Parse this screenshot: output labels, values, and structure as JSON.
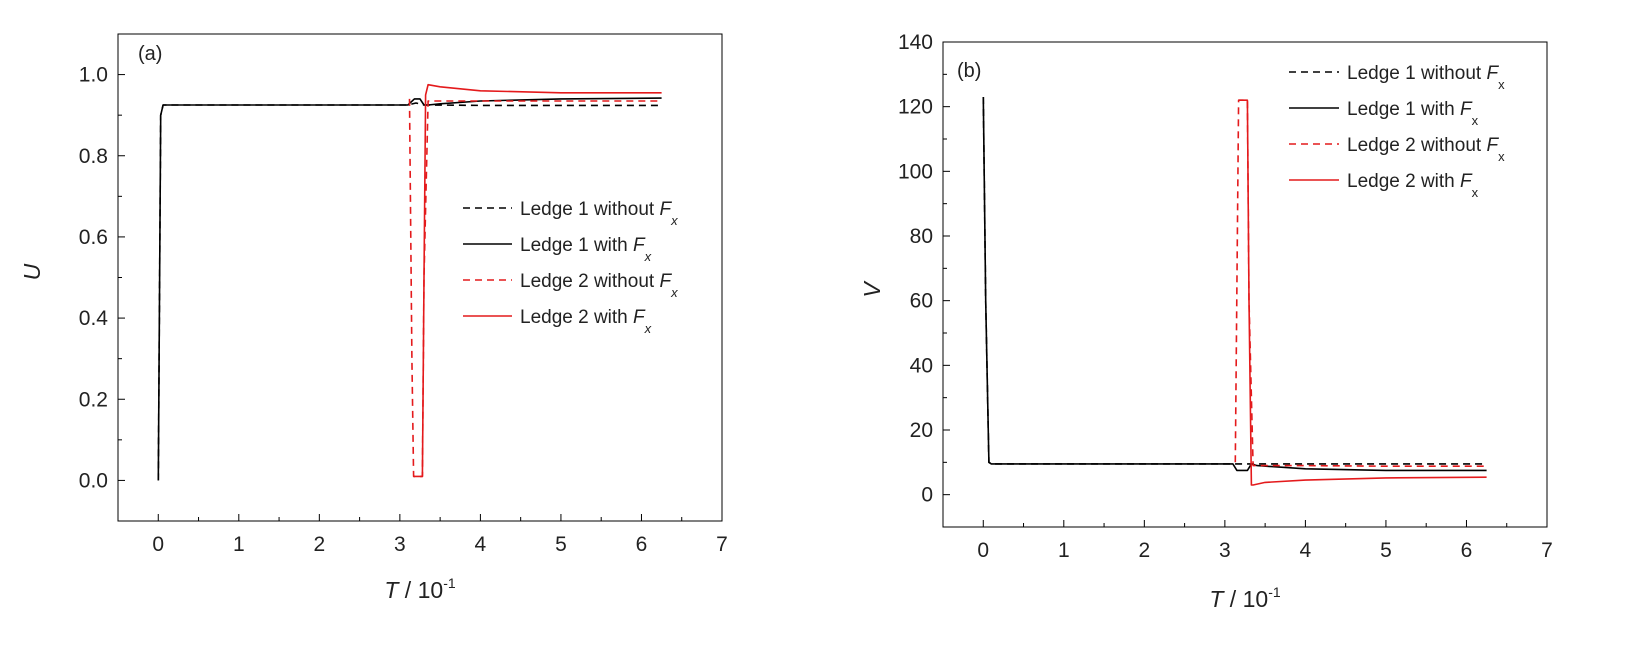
{
  "chart_data": [
    {
      "panel_label": "(a)",
      "type": "line",
      "xlabel": {
        "var": "T",
        "sep": " / ",
        "unit": "10",
        "exp": "-1"
      },
      "ylabel": "U",
      "xlim": [
        -0.5,
        7
      ],
      "ylim": [
        -0.1,
        1.1
      ],
      "xticks": [
        0,
        1,
        2,
        3,
        4,
        5,
        6,
        7
      ],
      "xtick_labels": [
        "0",
        "1",
        "2",
        "3",
        "4",
        "5",
        "6",
        "7"
      ],
      "yticks": [
        0.0,
        0.2,
        0.4,
        0.6,
        0.8,
        1.0
      ],
      "ytick_labels": [
        "0.0",
        "0.2",
        "0.4",
        "0.6",
        "0.8",
        "1.0"
      ],
      "legend_position": "center-right",
      "legend_subscript_style": "italic",
      "series": [
        {
          "legend": {
            "prefix": "Ledge 1 without ",
            "sym": "F",
            "sub": "x"
          },
          "color": "#000000",
          "dash": "dashed",
          "x": [
            0,
            0.03,
            0.06,
            3.1,
            3.2,
            3.3,
            3.4,
            4.0,
            5.0,
            6.25
          ],
          "y": [
            0.0,
            0.9,
            0.925,
            0.925,
            0.93,
            0.925,
            0.925,
            0.924,
            0.924,
            0.924
          ]
        },
        {
          "legend": {
            "prefix": "Ledge 1 with ",
            "sym": "F",
            "sub": "x"
          },
          "color": "#000000",
          "dash": "solid",
          "x": [
            0,
            0.03,
            0.06,
            3.1,
            3.18,
            3.25,
            3.3,
            3.35,
            3.5,
            4.0,
            5.0,
            6.25
          ],
          "y": [
            0.0,
            0.9,
            0.925,
            0.925,
            0.94,
            0.94,
            0.925,
            0.925,
            0.928,
            0.935,
            0.94,
            0.942
          ]
        },
        {
          "legend": {
            "prefix": "Ledge 2 without ",
            "sym": "F",
            "sub": "x"
          },
          "color": "#e41a1c",
          "dash": "dashed",
          "x": [
            3.12,
            3.15,
            3.17,
            3.22,
            3.28,
            3.3,
            3.35,
            3.5,
            4.0,
            5.0,
            6.25
          ],
          "y": [
            0.94,
            0.3,
            0.01,
            0.01,
            0.01,
            0.5,
            0.935,
            0.935,
            0.935,
            0.935,
            0.935
          ]
        },
        {
          "legend": {
            "prefix": "Ledge 2 with ",
            "sym": "F",
            "sub": "x"
          },
          "color": "#e41a1c",
          "dash": "solid",
          "x": [
            3.17,
            3.22,
            3.28,
            3.3,
            3.32,
            3.35,
            3.5,
            4.0,
            5.0,
            6.25
          ],
          "y": [
            0.01,
            0.01,
            0.01,
            0.5,
            0.95,
            0.975,
            0.97,
            0.96,
            0.955,
            0.955
          ]
        }
      ]
    },
    {
      "panel_label": "(b)",
      "type": "line",
      "xlabel": {
        "var": "T",
        "sep": " / ",
        "unit": "10",
        "exp": "-1"
      },
      "ylabel": "V",
      "xlim": [
        -0.5,
        7
      ],
      "ylim": [
        -10,
        140
      ],
      "xticks": [
        0,
        1,
        2,
        3,
        4,
        5,
        6,
        7
      ],
      "xtick_labels": [
        "0",
        "1",
        "2",
        "3",
        "4",
        "5",
        "6",
        "7"
      ],
      "yticks": [
        0,
        20,
        40,
        60,
        80,
        100,
        120,
        140
      ],
      "ytick_labels": [
        "0",
        "20",
        "40",
        "60",
        "80",
        "100",
        "120",
        "140"
      ],
      "legend_position": "top-right",
      "legend_subscript_style": "upright",
      "series": [
        {
          "legend": {
            "prefix": "Ledge 1 without ",
            "sym": "F",
            "sub": "x"
          },
          "color": "#000000",
          "dash": "dashed",
          "x": [
            0,
            0.03,
            0.07,
            0.1,
            3.1,
            3.2,
            3.3,
            3.4,
            4.0,
            5.0,
            6.25
          ],
          "y": [
            123,
            60,
            10,
            9.5,
            9.5,
            9.5,
            9.5,
            9.5,
            9.5,
            9.5,
            9.5
          ]
        },
        {
          "legend": {
            "prefix": "Ledge 1 with ",
            "sym": "F",
            "sub": "x"
          },
          "color": "#000000",
          "dash": "solid",
          "x": [
            0,
            0.03,
            0.07,
            0.1,
            3.1,
            3.15,
            3.28,
            3.33,
            3.4,
            4.0,
            5.0,
            6.25
          ],
          "y": [
            123,
            60,
            10,
            9.5,
            9.5,
            7.5,
            7.5,
            9.5,
            9,
            8,
            7.5,
            7.5
          ]
        },
        {
          "legend": {
            "prefix": "Ledge 2 without ",
            "sym": "F",
            "sub": "x"
          },
          "color": "#e41a1c",
          "dash": "dashed",
          "x": [
            3.13,
            3.17,
            3.22,
            3.28,
            3.3,
            3.35,
            3.5,
            4.0,
            5.0,
            6.25
          ],
          "y": [
            10,
            122,
            122,
            122,
            60,
            9,
            9,
            9,
            8.8,
            8.8
          ]
        },
        {
          "legend": {
            "prefix": "Ledge 2 with ",
            "sym": "F",
            "sub": "x"
          },
          "color": "#e41a1c",
          "dash": "solid",
          "x": [
            3.17,
            3.22,
            3.28,
            3.3,
            3.33,
            3.35,
            3.5,
            4.0,
            5.0,
            6.25
          ],
          "y": [
            122,
            122,
            122,
            60,
            3,
            3,
            3.8,
            4.5,
            5.2,
            5.4
          ]
        }
      ]
    }
  ]
}
